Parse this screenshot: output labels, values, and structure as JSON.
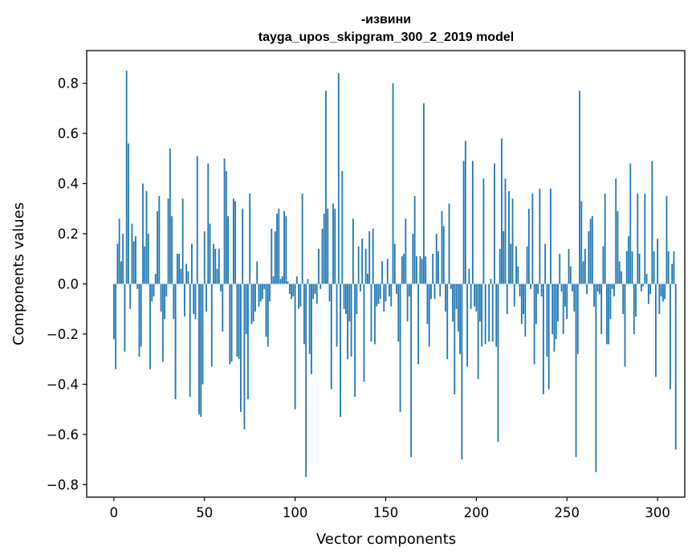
{
  "chart_data": {
    "type": "bar",
    "title_line1": "-извини",
    "title_line2": "tayga_upos_skipgram_300_2_2019 model",
    "xlabel": "Vector components",
    "ylabel": "Components values",
    "xlim": [
      -15,
      315
    ],
    "ylim": [
      -0.85,
      0.93
    ],
    "x_ticks": [
      0,
      50,
      100,
      150,
      200,
      250,
      300
    ],
    "x_tick_labels": [
      "0",
      "50",
      "100",
      "150",
      "200",
      "250",
      "300"
    ],
    "y_ticks": [
      -0.8,
      -0.6,
      -0.4,
      -0.2,
      0.0,
      0.2,
      0.4,
      0.6,
      0.8
    ],
    "y_tick_labels": [
      "−0.8",
      "−0.6",
      "−0.4",
      "−0.2",
      "0.0",
      "0.2",
      "0.4",
      "0.6",
      "0.8"
    ],
    "bar_color": "#1f77b4",
    "values": [
      -0.22,
      -0.34,
      0.16,
      0.26,
      0.09,
      0.2,
      -0.27,
      0.85,
      0.56,
      -0.1,
      0.24,
      0.17,
      0.19,
      -0.02,
      -0.29,
      -0.25,
      0.4,
      0.15,
      0.37,
      0.2,
      -0.34,
      -0.07,
      -0.05,
      0.04,
      0.29,
      0.35,
      -0.11,
      -0.31,
      -0.14,
      -0.05,
      0.34,
      0.54,
      0.27,
      -0.14,
      -0.46,
      0.12,
      0.12,
      0.06,
      0.34,
      -0.13,
      0.08,
      0.05,
      -0.45,
      0.16,
      -0.12,
      -0.14,
      0.51,
      -0.52,
      -0.53,
      -0.4,
      0.21,
      -0.11,
      0.48,
      0.24,
      -0.33,
      0.16,
      0.14,
      0.06,
      0.14,
      -0.03,
      -0.19,
      0.5,
      0.45,
      0.27,
      -0.32,
      -0.31,
      0.34,
      0.33,
      -0.29,
      -0.3,
      -0.51,
      0.3,
      -0.58,
      -0.2,
      -0.46,
      0.36,
      -0.16,
      -0.15,
      -0.11,
      0.09,
      -0.09,
      -0.07,
      -0.06,
      -0.02,
      -0.21,
      -0.25,
      -0.07,
      0.22,
      0.03,
      0.21,
      0.28,
      0.3,
      0.02,
      0.03,
      0.29,
      0.27,
      0.01,
      -0.04,
      -0.06,
      -0.05,
      -0.5,
      0.03,
      -0.1,
      -0.09,
      0.36,
      -0.24,
      -0.77,
      0.02,
      -0.28,
      -0.36,
      -0.06,
      -0.04,
      -0.08,
      0.14,
      -0.02,
      0.22,
      0.28,
      0.77,
      0.3,
      -0.07,
      -0.42,
      0.32,
      0.3,
      -0.25,
      0.84,
      -0.53,
      0.45,
      -0.1,
      -0.12,
      -0.3,
      -0.15,
      -0.29,
      0.26,
      -0.45,
      -0.12,
      0.15,
      -0.03,
      0.18,
      -0.39,
      0.14,
      0.04,
      0.21,
      -0.23,
      0.22,
      -0.24,
      -0.09,
      -0.08,
      -0.06,
      0.09,
      -0.11,
      -0.07,
      0.1,
      -0.05,
      -0.09,
      0.8,
      0.16,
      -0.04,
      -0.23,
      -0.51,
      0.11,
      0.12,
      0.26,
      -0.15,
      -0.05,
      -0.69,
      0.2,
      0.35,
      0.11,
      -0.32,
      0.11,
      0.1,
      0.72,
      0.11,
      -0.16,
      -0.25,
      -0.06,
      0.12,
      -0.06,
      0.2,
      0.13,
      -0.05,
      0.29,
      0.23,
      -0.11,
      -0.3,
      0.32,
      -0.02,
      -0.15,
      -0.44,
      -0.1,
      -0.19,
      -0.28,
      -0.7,
      0.49,
      0.57,
      -0.33,
      0.06,
      -0.1,
      0.49,
      -0.09,
      -0.11,
      -0.38,
      -0.15,
      -0.25,
      0.42,
      -0.24,
      0.0,
      -0.23,
      0.02,
      -0.23,
      0.48,
      -0.25,
      -0.63,
      0.14,
      0.58,
      0.21,
      0.42,
      -0.12,
      0.37,
      0.16,
      0.34,
      -0.09,
      0.15,
      0.07,
      -0.05,
      -0.16,
      -0.12,
      -0.21,
      0.15,
      0.3,
      -0.02,
      0.36,
      -0.32,
      -0.16,
      -0.04,
      0.38,
      -0.05,
      -0.44,
      0.16,
      -0.29,
      -0.42,
      0.38,
      -0.2,
      -0.27,
      -0.22,
      -0.15,
      0.12,
      -0.03,
      -0.2,
      -0.09,
      -0.14,
      0.14,
      0.07,
      -0.03,
      -0.11,
      -0.69,
      -0.28,
      0.77,
      0.33,
      0.09,
      0.14,
      -0.04,
      0.21,
      0.26,
      0.27,
      -0.09,
      -0.75,
      -0.03,
      -0.04,
      -0.2,
      0.15,
      0.36,
      -0.24,
      -0.24,
      -0.14,
      -0.02,
      -0.05,
      0.42,
      0.29,
      0.09,
      0.05,
      -0.12,
      -0.33,
      0.13,
      0.19,
      0.48,
      0.13,
      -0.2,
      -0.13,
      0.36,
      0.12,
      -0.03,
      -0.01,
      0.36,
      0.04,
      -0.08,
      -0.04,
      0.49,
      0.13,
      -0.37,
      0.18,
      -0.12,
      -0.05,
      -0.07,
      -0.06,
      0.35,
      0.13,
      -0.42,
      0.08,
      0.13,
      -0.66,
      0.0
    ]
  }
}
